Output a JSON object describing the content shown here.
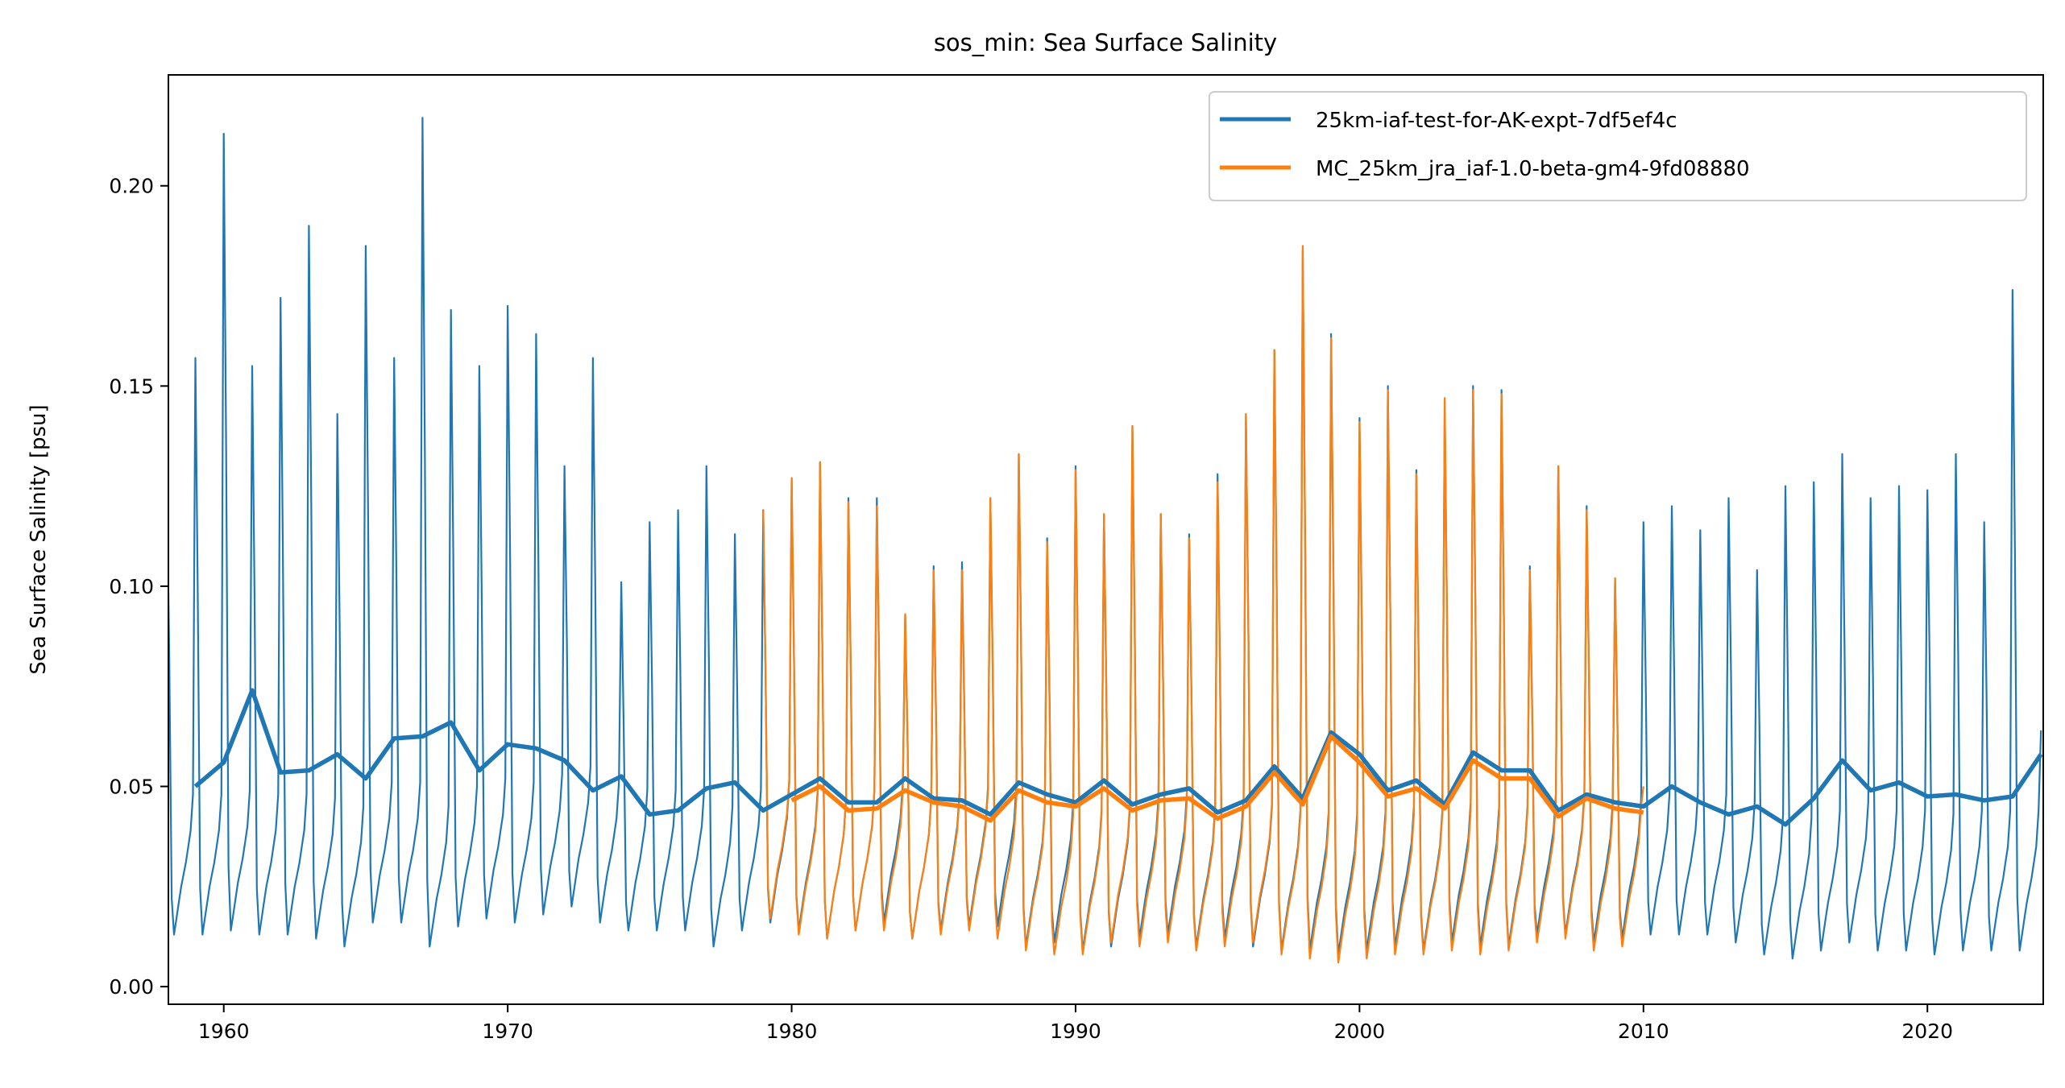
{
  "chart_data": {
    "type": "line",
    "title": "sos_min: Sea Surface Salinity",
    "xlabel": "",
    "ylabel": "Sea Surface Salinity [psu]",
    "xlim": [
      1958.05,
      2024.08
    ],
    "ylim": [
      -0.0044,
      0.2277
    ],
    "xticks": [
      1960,
      1970,
      1980,
      1990,
      2000,
      2010,
      2020
    ],
    "xtick_labels": [
      "1960",
      "1970",
      "1980",
      "1990",
      "2000",
      "2010",
      "2020"
    ],
    "yticks": [
      0.0,
      0.05,
      0.1,
      0.15,
      0.2
    ],
    "ytick_labels": [
      "0.00",
      "0.05",
      "0.10",
      "0.15",
      "0.20"
    ],
    "grid": false,
    "legend_placement": "upper right",
    "colors": {
      "series1": "#1f77b4",
      "series2": "#ff7f0e"
    },
    "series": [
      {
        "name": "25km-iaf-test-for-AK-expt-7df5ef4c",
        "color": "#1f77b4",
        "monthly_yearly_peaks": {
          "start_year": 1958,
          "peaks": [
            0.125,
            0.157,
            0.213,
            0.155,
            0.172,
            0.19,
            0.143,
            0.185,
            0.157,
            0.217,
            0.169,
            0.155,
            0.17,
            0.163,
            0.13,
            0.157,
            0.101,
            0.116,
            0.119,
            0.13,
            0.113,
            0.119,
            0.127,
            0.131,
            0.122,
            0.122,
            0.093,
            0.105,
            0.106,
            0.122,
            0.133,
            0.112,
            0.13,
            0.118,
            0.14,
            0.118,
            0.113,
            0.128,
            0.143,
            0.159,
            0.184,
            0.163,
            0.142,
            0.15,
            0.129,
            0.146,
            0.15,
            0.149,
            0.105,
            0.13,
            0.12,
            0.102,
            0.116,
            0.12,
            0.114,
            0.122,
            0.104,
            0.125,
            0.126,
            0.133,
            0.122,
            0.125,
            0.124,
            0.133,
            0.116,
            0.174,
            0.064
          ],
          "troughs": [
            0.013,
            0.013,
            0.014,
            0.013,
            0.013,
            0.012,
            0.01,
            0.016,
            0.016,
            0.01,
            0.015,
            0.017,
            0.016,
            0.018,
            0.02,
            0.016,
            0.014,
            0.014,
            0.014,
            0.01,
            0.014,
            0.016,
            0.014,
            0.012,
            0.014,
            0.016,
            0.012,
            0.014,
            0.015,
            0.015,
            0.01,
            0.011,
            0.009,
            0.01,
            0.012,
            0.013,
            0.01,
            0.012,
            0.01,
            0.009,
            0.009,
            0.008,
            0.009,
            0.01,
            0.009,
            0.011,
            0.01,
            0.01,
            0.013,
            0.013,
            0.011,
            0.012,
            0.013,
            0.013,
            0.013,
            0.011,
            0.008,
            0.007,
            0.009,
            0.011,
            0.009,
            0.009,
            0.008,
            0.009,
            0.009,
            0.009,
            0.01
          ]
        },
        "annual_mean": {
          "years": [
            1959,
            1960,
            1961,
            1962,
            1963,
            1964,
            1965,
            1966,
            1967,
            1968,
            1969,
            1970,
            1971,
            1972,
            1973,
            1974,
            1975,
            1976,
            1977,
            1978,
            1979,
            1980,
            1981,
            1982,
            1983,
            1984,
            1985,
            1986,
            1987,
            1988,
            1989,
            1990,
            1991,
            1992,
            1993,
            1994,
            1995,
            1996,
            1997,
            1998,
            1999,
            2000,
            2001,
            2002,
            2003,
            2004,
            2005,
            2006,
            2007,
            2008,
            2009,
            2010,
            2011,
            2012,
            2013,
            2014,
            2015,
            2016,
            2017,
            2018,
            2019,
            2020,
            2021,
            2022,
            2023,
            2024
          ],
          "values": [
            0.05,
            0.056,
            0.074,
            0.0535,
            0.054,
            0.058,
            0.052,
            0.062,
            0.0625,
            0.066,
            0.054,
            0.0605,
            0.0595,
            0.0565,
            0.049,
            0.0525,
            0.043,
            0.044,
            0.0495,
            0.051,
            0.044,
            0.048,
            0.052,
            0.046,
            0.046,
            0.052,
            0.047,
            0.0465,
            0.043,
            0.051,
            0.048,
            0.046,
            0.0515,
            0.0455,
            0.048,
            0.0495,
            0.0435,
            0.0465,
            0.055,
            0.047,
            0.0635,
            0.058,
            0.049,
            0.0515,
            0.0455,
            0.0585,
            0.054,
            0.054,
            0.044,
            0.048,
            0.046,
            0.045,
            0.05,
            0.046,
            0.043,
            0.045,
            0.0405,
            0.047,
            0.0565,
            0.049,
            0.051,
            0.0475,
            0.048,
            0.0465,
            0.0475,
            0.058
          ]
        }
      },
      {
        "name": "MC_25km_jra_iaf-1.0-beta-gm4-9fd08880",
        "color": "#ff7f0e",
        "monthly_yearly_peaks": {
          "start_year": 1979,
          "peaks": [
            0.119,
            0.127,
            0.131,
            0.121,
            0.12,
            0.093,
            0.104,
            0.104,
            0.122,
            0.133,
            0.111,
            0.129,
            0.118,
            0.14,
            0.118,
            0.112,
            0.126,
            0.143,
            0.159,
            0.185,
            0.162,
            0.141,
            0.149,
            0.128,
            0.147,
            0.149,
            0.148,
            0.104,
            0.13,
            0.119,
            0.102,
            0.05
          ],
          "troughs": [
            0.017,
            0.013,
            0.012,
            0.014,
            0.014,
            0.012,
            0.013,
            0.014,
            0.012,
            0.009,
            0.008,
            0.008,
            0.011,
            0.01,
            0.011,
            0.009,
            0.01,
            0.011,
            0.008,
            0.007,
            0.006,
            0.007,
            0.008,
            0.008,
            0.009,
            0.008,
            0.009,
            0.011,
            0.012,
            0.009,
            0.01,
            0.01
          ]
        },
        "annual_mean": {
          "years": [
            1980,
            1981,
            1982,
            1983,
            1984,
            1985,
            1986,
            1987,
            1988,
            1989,
            1990,
            1991,
            1992,
            1993,
            1994,
            1995,
            1996,
            1997,
            1998,
            1999,
            2000,
            2001,
            2002,
            2003,
            2004,
            2005,
            2006,
            2007,
            2008,
            2009,
            2010
          ],
          "values": [
            0.0465,
            0.05,
            0.044,
            0.0445,
            0.049,
            0.046,
            0.045,
            0.0415,
            0.049,
            0.046,
            0.045,
            0.0495,
            0.044,
            0.0465,
            0.047,
            0.042,
            0.045,
            0.0535,
            0.0455,
            0.0625,
            0.056,
            0.0475,
            0.0495,
            0.0445,
            0.0565,
            0.052,
            0.052,
            0.0425,
            0.047,
            0.0445,
            0.0435
          ]
        }
      }
    ]
  }
}
